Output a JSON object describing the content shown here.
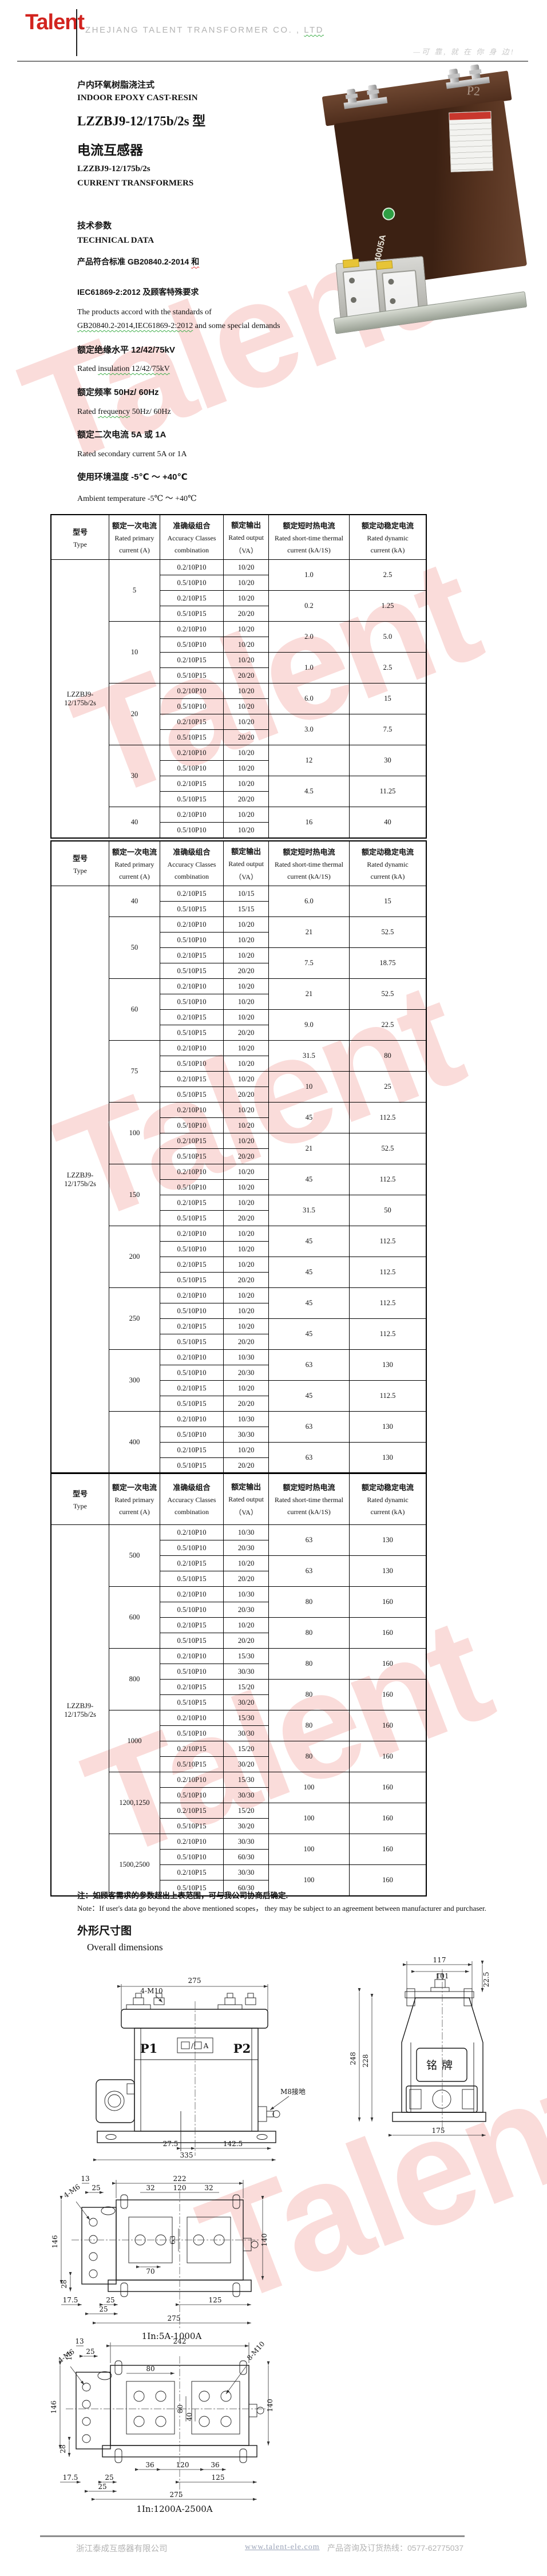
{
  "header": {
    "logo": "Talent",
    "company_a": "ZHEJIANG TALENT TRANSFORMER CO. ,",
    "company_b": "LTD",
    "slogan": "—可 靠, 就 在 你 身 边!"
  },
  "intro": {
    "title_zh": "户内环氧树脂浇注式",
    "title_en": "INDOOR EPOXY CAST-RESIN",
    "model_line": "LZZBJ9-12/175b/2s 型",
    "product_zh": "电流互感器",
    "model_en": "LZZBJ9-12/175b/2s",
    "product_en": "CURRENT TRANSFORMERS",
    "tech_zh": "技术参数",
    "tech_en": "TECHNICAL DATA",
    "std_zh1a": "产品符合标准 GB20840.2-2014 ",
    "std_zh1b": "和",
    "std_zh2": "IEC61869-2:2012 及顾客特殊要求",
    "std_en1": "The products accord with the standards of",
    "std_en2a": "GB20840.2-2014,IEC61869-2:2012",
    "std_en2b": " and some special demands",
    "ins_zh": "额定绝缘水平 12/42/75kV",
    "ins_en_a": "Rated ",
    "ins_en_b": "insulation   12/42/75kV",
    "freq_zh": "额定频率 50Hz/ 60Hz",
    "freq_en_a": "Rated ",
    "freq_en_b": "frequency",
    "freq_en_c": "   50Hz/ 60Hz",
    "sec_zh": "额定二次电流 5A 或 1A",
    "sec_en": "Rated secondary current 5A or 1A",
    "amb_zh": "使用环境温度 -5℃ ～ +40℃",
    "amb_en": "Ambient temperature   -5℃ ～ +40℃"
  },
  "photo": {
    "p2": "P2",
    "rating": "400/5A"
  },
  "table_header": {
    "type_zh": "型号",
    "type_en": "Type",
    "primary_zh": "额定一次电流",
    "primary_en1": "Rated primary",
    "primary_en2": "current   (A)",
    "acc_zh": "准确级组合",
    "acc_en1": "Accuracy Classes",
    "acc_en2": "combination",
    "out_zh": "额定输出",
    "out_en1": "Rated output",
    "out_en2": "（VA）",
    "thermal_zh": "额定短时热电流",
    "thermal_en1": "Rated short-time thermal",
    "thermal_en2": "current   (kA/1S)",
    "dyn_zh": "额定动稳定电流",
    "dyn_en1": "Rated dynamic",
    "dyn_en2": "current   (kA)"
  },
  "tables": [
    {
      "type_label": "LZZBJ9-12/175b/2s",
      "groups": [
        {
          "primary": "5",
          "blocks": [
            {
              "rows": [
                [
                  "0.2/10P10",
                  "10/20"
                ],
                [
                  "0.5/10P10",
                  "10/20"
                ]
              ],
              "thermal": "1.0",
              "dynamic": "2.5"
            },
            {
              "rows": [
                [
                  "0.2/10P15",
                  "10/20"
                ],
                [
                  "0.5/10P15",
                  "20/20"
                ]
              ],
              "thermal": "0.2",
              "dynamic": "1.25"
            }
          ]
        },
        {
          "primary": "10",
          "blocks": [
            {
              "rows": [
                [
                  "0.2/10P10",
                  "10/20"
                ],
                [
                  "0.5/10P10",
                  "10/20"
                ]
              ],
              "thermal": "2.0",
              "dynamic": "5.0"
            },
            {
              "rows": [
                [
                  "0.2/10P15",
                  "10/20"
                ],
                [
                  "0.5/10P15",
                  "20/20"
                ]
              ],
              "thermal": "1.0",
              "dynamic": "2.5"
            }
          ]
        },
        {
          "primary": "20",
          "blocks": [
            {
              "rows": [
                [
                  "0.2/10P10",
                  "10/20"
                ],
                [
                  "0.5/10P10",
                  "10/20"
                ]
              ],
              "thermal": "6.0",
              "dynamic": "15"
            },
            {
              "rows": [
                [
                  "0.2/10P15",
                  "10/20"
                ],
                [
                  "0.5/10P15",
                  "20/20"
                ]
              ],
              "thermal": "3.0",
              "dynamic": "7.5"
            }
          ]
        },
        {
          "primary": "30",
          "blocks": [
            {
              "rows": [
                [
                  "0.2/10P10",
                  "10/20"
                ],
                [
                  "0.5/10P10",
                  "10/20"
                ]
              ],
              "thermal": "12",
              "dynamic": "30"
            },
            {
              "rows": [
                [
                  "0.2/10P15",
                  "10/20"
                ],
                [
                  "0.5/10P15",
                  "20/20"
                ]
              ],
              "thermal": "4.5",
              "dynamic": "11.25"
            }
          ]
        },
        {
          "primary": "40",
          "blocks": [
            {
              "rows": [
                [
                  "0.2/10P10",
                  "10/20"
                ],
                [
                  "0.5/10P10",
                  "10/20"
                ]
              ],
              "thermal": "16",
              "dynamic": "40"
            }
          ]
        }
      ]
    },
    {
      "type_label": "LZZBJ9-12/175b/2s",
      "groups": [
        {
          "primary": "40",
          "blocks": [
            {
              "rows": [
                [
                  "0.2/10P15",
                  "10/15"
                ],
                [
                  "0.5/10P15",
                  "15/15"
                ]
              ],
              "thermal": "6.0",
              "dynamic": "15"
            }
          ]
        },
        {
          "primary": "50",
          "blocks": [
            {
              "rows": [
                [
                  "0.2/10P10",
                  "10/20"
                ],
                [
                  "0.5/10P10",
                  "10/20"
                ]
              ],
              "thermal": "21",
              "dynamic": "52.5"
            },
            {
              "rows": [
                [
                  "0.2/10P15",
                  "10/20"
                ],
                [
                  "0.5/10P15",
                  "20/20"
                ]
              ],
              "thermal": "7.5",
              "dynamic": "18.75"
            }
          ]
        },
        {
          "primary": "60",
          "blocks": [
            {
              "rows": [
                [
                  "0.2/10P10",
                  "10/20"
                ],
                [
                  "0.5/10P10",
                  "10/20"
                ]
              ],
              "thermal": "21",
              "dynamic": "52.5"
            },
            {
              "rows": [
                [
                  "0.2/10P15",
                  "10/20"
                ],
                [
                  "0.5/10P15",
                  "20/20"
                ]
              ],
              "thermal": "9.0",
              "dynamic": "22.5"
            }
          ]
        },
        {
          "primary": "75",
          "blocks": [
            {
              "rows": [
                [
                  "0.2/10P10",
                  "10/20"
                ],
                [
                  "0.5/10P10",
                  "10/20"
                ]
              ],
              "thermal": "31.5",
              "dynamic": "80"
            },
            {
              "rows": [
                [
                  "0.2/10P15",
                  "10/20"
                ],
                [
                  "0.5/10P15",
                  "20/20"
                ]
              ],
              "thermal": "10",
              "dynamic": "25"
            }
          ]
        },
        {
          "primary": "100",
          "blocks": [
            {
              "rows": [
                [
                  "0.2/10P10",
                  "10/20"
                ],
                [
                  "0.5/10P10",
                  "10/20"
                ]
              ],
              "thermal": "45",
              "dynamic": "112.5"
            },
            {
              "rows": [
                [
                  "0.2/10P15",
                  "10/20"
                ],
                [
                  "0.5/10P15",
                  "20/20"
                ]
              ],
              "thermal": "21",
              "dynamic": "52.5"
            }
          ]
        },
        {
          "primary": "150",
          "blocks": [
            {
              "rows": [
                [
                  "0.2/10P10",
                  "10/20"
                ],
                [
                  "0.5/10P10",
                  "10/20"
                ]
              ],
              "thermal": "45",
              "dynamic": "112.5"
            },
            {
              "rows": [
                [
                  "0.2/10P15",
                  "10/20"
                ],
                [
                  "0.5/10P15",
                  "20/20"
                ]
              ],
              "thermal": "31.5",
              "dynamic": "50"
            }
          ]
        },
        {
          "primary": "200",
          "blocks": [
            {
              "rows": [
                [
                  "0.2/10P10",
                  "10/20"
                ],
                [
                  "0.5/10P10",
                  "10/20"
                ]
              ],
              "thermal": "45",
              "dynamic": "112.5"
            },
            {
              "rows": [
                [
                  "0.2/10P15",
                  "10/20"
                ],
                [
                  "0.5/10P15",
                  "20/20"
                ]
              ],
              "thermal": "45",
              "dynamic": "112.5"
            }
          ]
        },
        {
          "primary": "250",
          "blocks": [
            {
              "rows": [
                [
                  "0.2/10P10",
                  "10/20"
                ],
                [
                  "0.5/10P10",
                  "10/20"
                ]
              ],
              "thermal": "45",
              "dynamic": "112.5"
            },
            {
              "rows": [
                [
                  "0.2/10P15",
                  "10/20"
                ],
                [
                  "0.5/10P15",
                  "20/20"
                ]
              ],
              "thermal": "45",
              "dynamic": "112.5"
            }
          ]
        },
        {
          "primary": "300",
          "blocks": [
            {
              "rows": [
                [
                  "0.2/10P10",
                  "10/30"
                ],
                [
                  "0.5/10P10",
                  "20/30"
                ]
              ],
              "thermal": "63",
              "dynamic": "130"
            },
            {
              "rows": [
                [
                  "0.2/10P15",
                  "10/20"
                ],
                [
                  "0.5/10P15",
                  "20/20"
                ]
              ],
              "thermal": "45",
              "dynamic": "112.5"
            }
          ]
        },
        {
          "primary": "400",
          "blocks": [
            {
              "rows": [
                [
                  "0.2/10P10",
                  "10/30"
                ],
                [
                  "0.5/10P10",
                  "30/30"
                ]
              ],
              "thermal": "63",
              "dynamic": "130"
            },
            {
              "rows": [
                [
                  "0.2/10P15",
                  "10/20"
                ],
                [
                  "0.5/10P15",
                  "20/20"
                ]
              ],
              "thermal": "63",
              "dynamic": "130"
            }
          ]
        }
      ]
    },
    {
      "type_label": "LZZBJ9-12/175b/2s",
      "groups": [
        {
          "primary": "500",
          "blocks": [
            {
              "rows": [
                [
                  "0.2/10P10",
                  "10/30"
                ],
                [
                  "0.5/10P10",
                  "20/30"
                ]
              ],
              "thermal": "63",
              "dynamic": "130"
            },
            {
              "rows": [
                [
                  "0.2/10P15",
                  "10/20"
                ],
                [
                  "0.5/10P15",
                  "20/20"
                ]
              ],
              "thermal": "63",
              "dynamic": "130"
            }
          ]
        },
        {
          "primary": "600",
          "blocks": [
            {
              "rows": [
                [
                  "0.2/10P10",
                  "10/30"
                ],
                [
                  "0.5/10P10",
                  "20/30"
                ]
              ],
              "thermal": "80",
              "dynamic": "160"
            },
            {
              "rows": [
                [
                  "0.2/10P15",
                  "10/20"
                ],
                [
                  "0.5/10P15",
                  "20/20"
                ]
              ],
              "thermal": "80",
              "dynamic": "160"
            }
          ]
        },
        {
          "primary": "800",
          "blocks": [
            {
              "rows": [
                [
                  "0.2/10P10",
                  "15/30"
                ],
                [
                  "0.5/10P10",
                  "30/30"
                ]
              ],
              "thermal": "80",
              "dynamic": "160"
            },
            {
              "rows": [
                [
                  "0.2/10P15",
                  "15/20"
                ],
                [
                  "0.5/10P15",
                  "30/20"
                ]
              ],
              "thermal": "80",
              "dynamic": "160"
            }
          ]
        },
        {
          "primary": "1000",
          "blocks": [
            {
              "rows": [
                [
                  "0.2/10P10",
                  "15/30"
                ],
                [
                  "0.5/10P10",
                  "30/30"
                ]
              ],
              "thermal": "80",
              "dynamic": "160"
            },
            {
              "rows": [
                [
                  "0.2/10P15",
                  "15/20"
                ],
                [
                  "0.5/10P15",
                  "30/20"
                ]
              ],
              "thermal": "80",
              "dynamic": "160"
            }
          ]
        },
        {
          "primary": "1200,1250",
          "blocks": [
            {
              "rows": [
                [
                  "0.2/10P10",
                  "15/30"
                ],
                [
                  "0.5/10P10",
                  "30/30"
                ]
              ],
              "thermal": "100",
              "dynamic": "160"
            },
            {
              "rows": [
                [
                  "0.2/10P15",
                  "15/20"
                ],
                [
                  "0.5/10P15",
                  "30/20"
                ]
              ],
              "thermal": "100",
              "dynamic": "160"
            }
          ]
        },
        {
          "primary": "1500,2500",
          "blocks": [
            {
              "rows": [
                [
                  "0.2/10P10",
                  "30/30"
                ],
                [
                  "0.5/10P10",
                  "60/30"
                ]
              ],
              "thermal": "100",
              "dynamic": "160"
            },
            {
              "rows": [
                [
                  "0.2/10P15",
                  "30/30"
                ],
                [
                  "0.5/10P15",
                  "60/30"
                ]
              ],
              "thermal": "100",
              "dynamic": "160"
            }
          ]
        }
      ]
    }
  ],
  "notes": {
    "zh": "注：如顾客需求的参数超出上表范围，可与我公司协商后确定.",
    "en": "Note：If user's data go beyond the above mentioned  scopes，  they may be subject to an agreement  between manufacturer and purchaser."
  },
  "dims_section": {
    "zh": "外形尺寸图",
    "en": "Overall dimensions"
  },
  "drawings": {
    "front": {
      "dim_width_top": "275",
      "bolt_label": "4-M10",
      "p1": "P1",
      "p2": "P2",
      "plate_slash": "/",
      "plate_a": "A",
      "ground_label": "M8接地",
      "dim_offset": "27.5",
      "dim_right": "142.5",
      "dim_total": "335"
    },
    "side": {
      "dim_top_outer": "117",
      "dim_top_inner": "101",
      "dim_top_side": "22.5",
      "dim_height_total": "248",
      "dim_height_body": "228",
      "dim_base": "175",
      "nameplate": "铭牌"
    },
    "bottom1": {
      "dim_top": "222",
      "dim_13": "13",
      "dim_25": "25",
      "dim_32a": "32",
      "dim_120": "120",
      "dim_32b": "32",
      "dim_left_146": "146",
      "dim_left_28": "28",
      "dim_70": "70",
      "dim_63": "63",
      "dim_right_140": "140",
      "screw_label": "4-M6",
      "dim_175": "17.5",
      "dim_25a": "25",
      "dim_25b": "25",
      "dim_125": "125",
      "dim_275": "275",
      "caption": "1In:5A-1000A"
    },
    "bottom2": {
      "dim_top": "242",
      "dim_13a": "13",
      "dim_13b": "13",
      "dim_25": "25",
      "dim_80": "80",
      "bolt_label": "8-M10",
      "screw_label": "4-M6",
      "dim_left_146": "146",
      "dim_left_28": "28",
      "dim_80v": "80",
      "dim_40": "40",
      "dim_right_140": "140",
      "dim_36a": "36",
      "dim_120": "120",
      "dim_36b": "36",
      "dim_175": "17.5",
      "dim_25a": "25",
      "dim_25b": "25",
      "dim_125": "125",
      "dim_275": "275",
      "caption": "1In:1200A-2500A"
    }
  },
  "footer": {
    "company": "浙江泰成互感器有限公司",
    "site": "www.talent-ele.com",
    "hotline": "产品咨询及订货热线：0577-62775037"
  },
  "watermark": {
    "text": "Talent"
  },
  "colors": {
    "logo_red": "#d2241f",
    "watermark_pink": "#ee8a84",
    "footer_gray": "#b3b3b3"
  }
}
